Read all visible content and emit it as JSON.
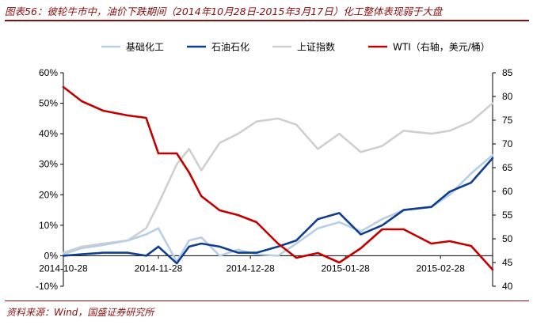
{
  "title": "图表56：彼轮牛市中，油价下跌期间（2014年10月28日-2015年3月17日）化工整体表现弱于大盘",
  "source": "资料来源：Wind，国盛证券研究所",
  "colors": {
    "基础化工": "#b8cde6",
    "石油石化": "#0f3e8e",
    "上证指数": "#cfcfcf",
    "WTI": "#c20000",
    "accent": "#8b0d0d"
  },
  "chart_data": {
    "type": "line",
    "x_ticks": [
      "2014-10-28",
      "2014-11-28",
      "2014-12-28",
      "2015-01-28",
      "2015-02-28"
    ],
    "x_range": [
      "2014-10-28",
      "2015-03-17"
    ],
    "y_left": {
      "ticks": [
        "-10%",
        "0%",
        "10%",
        "20%",
        "30%",
        "40%",
        "50%",
        "60%"
      ],
      "range": [
        -10,
        60
      ]
    },
    "y_right": {
      "ticks": [
        "40",
        "45",
        "50",
        "55",
        "60",
        "65",
        "70",
        "75",
        "80",
        "85"
      ],
      "range": [
        40,
        85
      ]
    },
    "grid": false,
    "legend_position": "top",
    "series": [
      {
        "name": "基础化工",
        "axis": "left",
        "x": [
          "2014-10-28",
          "2014-11-03",
          "2014-11-10",
          "2014-11-18",
          "2014-11-24",
          "2014-11-28",
          "2014-12-04",
          "2014-12-08",
          "2014-12-12",
          "2014-12-18",
          "2014-12-24",
          "2014-12-30",
          "2015-01-06",
          "2015-01-12",
          "2015-01-19",
          "2015-01-26",
          "2015-02-02",
          "2015-02-09",
          "2015-02-16",
          "2015-02-25",
          "2015-03-03",
          "2015-03-10",
          "2015-03-17"
        ],
        "values": [
          0.5,
          2.5,
          3.5,
          5,
          7,
          9,
          -2,
          5,
          6,
          0,
          2,
          0.5,
          0,
          4,
          9,
          11,
          8,
          12,
          15,
          16,
          20,
          27,
          33
        ]
      },
      {
        "name": "石油石化",
        "axis": "left",
        "x": [
          "2014-10-28",
          "2014-11-03",
          "2014-11-10",
          "2014-11-18",
          "2014-11-24",
          "2014-11-28",
          "2014-12-04",
          "2014-12-08",
          "2014-12-12",
          "2014-12-18",
          "2014-12-24",
          "2014-12-30",
          "2015-01-06",
          "2015-01-12",
          "2015-01-19",
          "2015-01-26",
          "2015-02-02",
          "2015-02-09",
          "2015-02-16",
          "2015-02-25",
          "2015-03-03",
          "2015-03-10",
          "2015-03-17"
        ],
        "values": [
          0,
          0.5,
          1,
          1,
          0,
          3,
          -2.5,
          3,
          4,
          3,
          1,
          1,
          3,
          5,
          12,
          14,
          7,
          10,
          15,
          16,
          21,
          24,
          32
        ]
      },
      {
        "name": "上证指数",
        "axis": "left",
        "x": [
          "2014-10-28",
          "2014-11-03",
          "2014-11-10",
          "2014-11-18",
          "2014-11-24",
          "2014-11-28",
          "2014-12-04",
          "2014-12-08",
          "2014-12-12",
          "2014-12-18",
          "2014-12-24",
          "2014-12-30",
          "2015-01-06",
          "2015-01-12",
          "2015-01-19",
          "2015-01-26",
          "2015-02-02",
          "2015-02-09",
          "2015-02-16",
          "2015-02-25",
          "2015-03-03",
          "2015-03-10",
          "2015-03-17"
        ],
        "values": [
          1,
          3,
          4,
          5,
          9,
          17,
          30,
          35,
          28,
          37,
          40,
          44,
          45,
          43,
          35,
          40,
          34,
          36,
          41,
          40,
          41,
          44,
          50
        ]
      },
      {
        "name": "WTI（右轴，美元/桶）",
        "axis": "right",
        "x": [
          "2014-10-28",
          "2014-11-03",
          "2014-11-10",
          "2014-11-18",
          "2014-11-24",
          "2014-11-28",
          "2014-12-04",
          "2014-12-08",
          "2014-12-12",
          "2014-12-18",
          "2014-12-24",
          "2014-12-30",
          "2015-01-06",
          "2015-01-12",
          "2015-01-19",
          "2015-01-26",
          "2015-02-02",
          "2015-02-09",
          "2015-02-16",
          "2015-02-25",
          "2015-03-03",
          "2015-03-10",
          "2015-03-17"
        ],
        "values": [
          82,
          79,
          77,
          76,
          75.5,
          68,
          68,
          64,
          59,
          56,
          55,
          53.5,
          49,
          46,
          47,
          45,
          48,
          52,
          52,
          49,
          49.5,
          48.5,
          43.5
        ]
      }
    ]
  }
}
